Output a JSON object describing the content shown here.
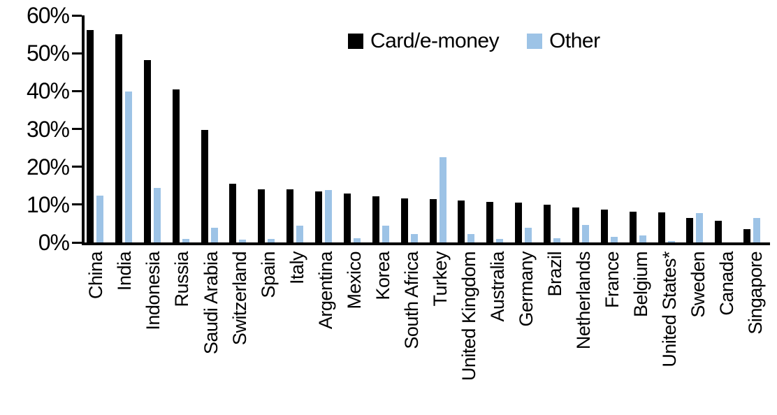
{
  "chart_data": {
    "type": "bar",
    "title": "",
    "xlabel": "",
    "ylabel": "",
    "ylim": [
      0,
      60
    ],
    "yticks": [
      "60%",
      "50%",
      "40%",
      "30%",
      "20%",
      "10%",
      "0%"
    ],
    "grid": false,
    "legend_position": "top-center",
    "categories": [
      "China",
      "India",
      "Indonesia",
      "Russia",
      "Saudi Arabia",
      "Switzerland",
      "Spain",
      "Italy",
      "Argentina",
      "Mexico",
      "Korea",
      "South Africa",
      "Turkey",
      "United Kingdom",
      "Australia",
      "Germany",
      "Brazil",
      "Netherlands",
      "France",
      "Belgium",
      "United States*",
      "Sweden",
      "Canada",
      "Singapore"
    ],
    "series": [
      {
        "name": "Card/e-money",
        "color": "#000000",
        "values": [
          56.2,
          55.0,
          48.2,
          40.4,
          29.8,
          15.6,
          14.1,
          14.1,
          13.4,
          12.9,
          12.2,
          11.7,
          11.5,
          11.1,
          10.7,
          10.5,
          9.9,
          9.2,
          8.7,
          8.2,
          7.9,
          6.4,
          5.7,
          3.6
        ]
      },
      {
        "name": "Other",
        "color": "#9DC3E6",
        "values": [
          12.3,
          39.8,
          14.4,
          0.9,
          3.8,
          0.7,
          0.9,
          4.5,
          13.8,
          1.2,
          4.5,
          2.2,
          22.6,
          2.3,
          0.9,
          3.9,
          1.1,
          4.6,
          1.4,
          1.9,
          0.3,
          7.8,
          0.0,
          6.4
        ]
      }
    ]
  }
}
